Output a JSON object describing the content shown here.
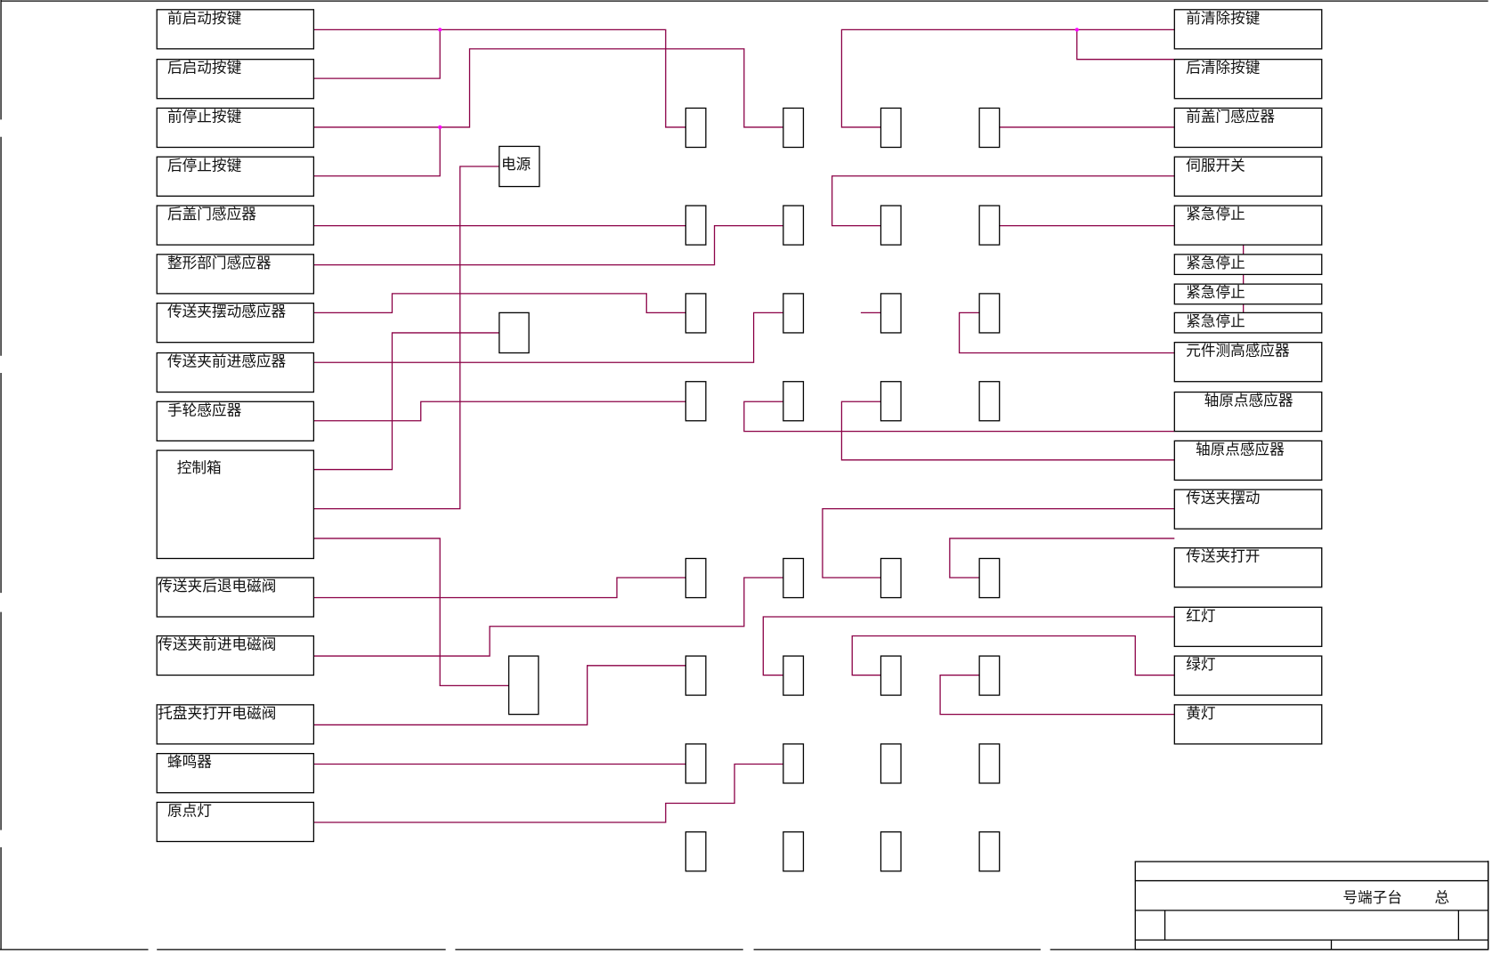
{
  "left_devices": [
    "前启动按键",
    "后启动按键",
    "前停止按键",
    "后停止按键",
    "后盖门感应器",
    "整形部门感应器",
    "传送夹摆动感应器",
    "传送夹前进感应器",
    "手轮感应器",
    "控制箱",
    "传送夹后退电磁阀",
    "传送夹前进电磁阀",
    "托盘夹打开电磁阀",
    "蜂鸣器",
    "原点灯"
  ],
  "right_devices": [
    "前清除按键",
    "后清除按键",
    "前盖门感应器",
    "伺服开关",
    "紧急停止",
    "紧急停止",
    "紧急停止",
    "紧急停止",
    "元件测高感应器",
    "轴原点感应器",
    "轴原点感应器",
    "传送夹摆动",
    "传送夹打开",
    "红灯",
    "绿灯",
    "黄灯"
  ],
  "power_label": "电源",
  "title_block": {
    "title": "号端子台",
    "suffix": "总"
  },
  "colors": {
    "wire": "#8b0046",
    "junction": "#ff00ff",
    "outline": "#000000"
  }
}
